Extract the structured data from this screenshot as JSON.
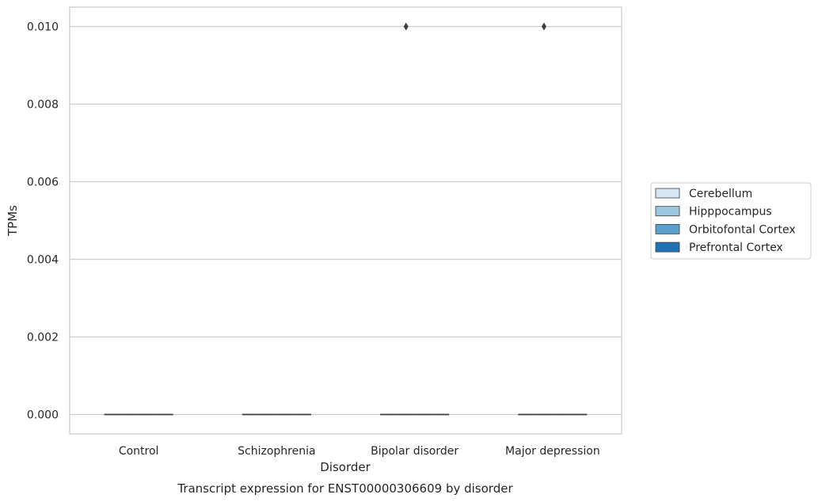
{
  "chart_data": {
    "type": "box",
    "title": "",
    "caption": "Transcript expression for ENST00000306609 by disorder",
    "xlabel": "Disorder",
    "ylabel": "TPMs",
    "categories": [
      "Control",
      "Schizophrenia",
      "Bipolar disorder",
      "Major depression"
    ],
    "ylim": [
      -0.0005,
      0.0105
    ],
    "yticks": [
      0.0,
      0.002,
      0.004,
      0.006,
      0.008,
      0.01
    ],
    "ytick_labels": [
      "0.000",
      "0.002",
      "0.004",
      "0.006",
      "0.008",
      "0.010"
    ],
    "grid": "horizontal",
    "legend_position": "right",
    "series": [
      {
        "name": "Cerebellum",
        "color": "#d6e6f4",
        "boxes": [
          {
            "q1": 0,
            "median": 0,
            "q3": 0,
            "whisker_low": 0,
            "whisker_high": 0,
            "outliers": []
          },
          {
            "q1": 0,
            "median": 0,
            "q3": 0,
            "whisker_low": 0,
            "whisker_high": 0,
            "outliers": []
          },
          {
            "q1": 0,
            "median": 0,
            "q3": 0,
            "whisker_low": 0,
            "whisker_high": 0,
            "outliers": []
          },
          {
            "q1": 0,
            "median": 0,
            "q3": 0,
            "whisker_low": 0,
            "whisker_high": 0,
            "outliers": []
          }
        ]
      },
      {
        "name": "Hipppocampus",
        "color": "#9ac8e0",
        "boxes": [
          {
            "q1": 0,
            "median": 0,
            "q3": 0,
            "whisker_low": 0,
            "whisker_high": 0,
            "outliers": []
          },
          {
            "q1": 0,
            "median": 0,
            "q3": 0,
            "whisker_low": 0,
            "whisker_high": 0,
            "outliers": []
          },
          {
            "q1": 0,
            "median": 0,
            "q3": 0,
            "whisker_low": 0,
            "whisker_high": 0,
            "outliers": [
              0.01
            ]
          },
          {
            "q1": 0,
            "median": 0,
            "q3": 0,
            "whisker_low": 0,
            "whisker_high": 0,
            "outliers": [
              0.01
            ]
          }
        ]
      },
      {
        "name": "Orbitofontal Cortex",
        "color": "#5aa0cd",
        "boxes": [
          {
            "q1": 0,
            "median": 0,
            "q3": 0,
            "whisker_low": 0,
            "whisker_high": 0,
            "outliers": []
          },
          {
            "q1": 0,
            "median": 0,
            "q3": 0,
            "whisker_low": 0,
            "whisker_high": 0,
            "outliers": []
          },
          {
            "q1": 0,
            "median": 0,
            "q3": 0,
            "whisker_low": 0,
            "whisker_high": 0,
            "outliers": []
          },
          {
            "q1": 0,
            "median": 0,
            "q3": 0,
            "whisker_low": 0,
            "whisker_high": 0,
            "outliers": []
          }
        ]
      },
      {
        "name": "Prefrontal Cortex",
        "color": "#2171b5",
        "boxes": [
          {
            "q1": 0,
            "median": 0,
            "q3": 0,
            "whisker_low": 0,
            "whisker_high": 0,
            "outliers": []
          },
          {
            "q1": 0,
            "median": 0,
            "q3": 0,
            "whisker_low": 0,
            "whisker_high": 0,
            "outliers": []
          },
          {
            "q1": 0,
            "median": 0,
            "q3": 0,
            "whisker_low": 0,
            "whisker_high": 0,
            "outliers": []
          },
          {
            "q1": 0,
            "median": 0,
            "q3": 0,
            "whisker_low": 0,
            "whisker_high": 0,
            "outliers": []
          }
        ]
      }
    ]
  }
}
